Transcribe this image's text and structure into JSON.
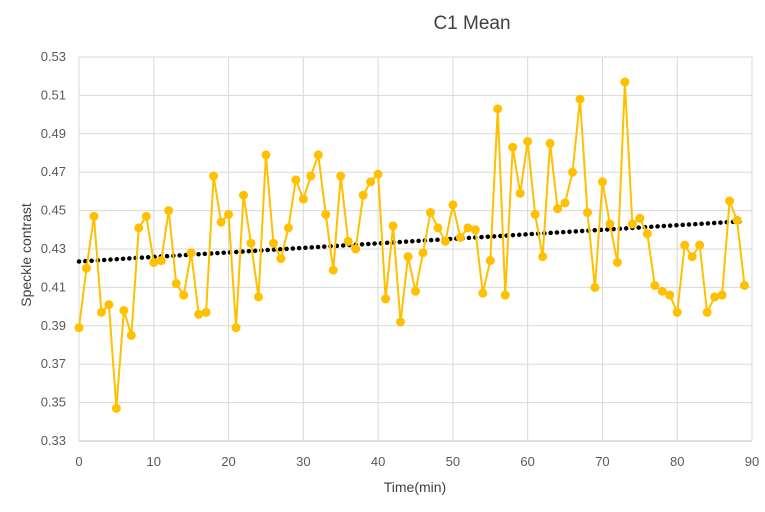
{
  "chart_data": {
    "type": "line",
    "title": "C1 Mean",
    "xlabel": "Time(min)",
    "ylabel": "Speckle contrast",
    "xlim": [
      0,
      90
    ],
    "ylim": [
      0.33,
      0.53
    ],
    "x_ticks": [
      "0",
      "10",
      "20",
      "30",
      "40",
      "50",
      "60",
      "70",
      "80",
      "90"
    ],
    "y_ticks": [
      "0.33",
      "0.35",
      "0.37",
      "0.39",
      "0.41",
      "0.43",
      "0.45",
      "0.47",
      "0.49",
      "0.51",
      "0.53"
    ],
    "grid": true,
    "legend": "none",
    "colors": {
      "series": "#FFC000",
      "trendline": "#000000",
      "grid": "#D9D9D9"
    },
    "series": [
      {
        "x": [
          0,
          1,
          2,
          3,
          4,
          5,
          6,
          7,
          8,
          9,
          10,
          11,
          12,
          13,
          14,
          15,
          16,
          17,
          18,
          19,
          20,
          21,
          22,
          23,
          24,
          25,
          26,
          27,
          28,
          29,
          30,
          31,
          32,
          33,
          34,
          35,
          36,
          37,
          38,
          39,
          40,
          41,
          42,
          43,
          44,
          45,
          46,
          47,
          48,
          49,
          50,
          51,
          52,
          53,
          54,
          55,
          56,
          57,
          58,
          59,
          60,
          61,
          62,
          63,
          64,
          65,
          66,
          67,
          68,
          69,
          70,
          71,
          72,
          73,
          74,
          75,
          76,
          77,
          78,
          79,
          80,
          81,
          82,
          83,
          84,
          85,
          86,
          87,
          88,
          89
        ],
        "values": [
          0.389,
          0.42,
          0.447,
          0.397,
          0.401,
          0.347,
          0.398,
          0.385,
          0.441,
          0.447,
          0.423,
          0.424,
          0.45,
          0.412,
          0.406,
          0.428,
          0.396,
          0.397,
          0.468,
          0.444,
          0.448,
          0.389,
          0.458,
          0.433,
          0.405,
          0.479,
          0.433,
          0.425,
          0.441,
          0.466,
          0.456,
          0.468,
          0.479,
          0.448,
          0.419,
          0.468,
          0.434,
          0.43,
          0.458,
          0.465,
          0.469,
          0.404,
          0.442,
          0.392,
          0.426,
          0.408,
          0.428,
          0.449,
          0.441,
          0.434,
          0.453,
          0.436,
          0.441,
          0.44,
          0.407,
          0.424,
          0.503,
          0.406,
          0.483,
          0.459,
          0.486,
          0.448,
          0.426,
          0.485,
          0.451,
          0.454,
          0.47,
          0.508,
          0.449,
          0.41,
          0.465,
          0.443,
          0.423,
          0.517,
          0.443,
          0.446,
          0.438,
          0.411,
          0.408,
          0.406,
          0.397,
          0.432,
          0.426,
          0.432,
          0.397,
          0.405,
          0.406,
          0.455,
          0.445,
          0.411
        ]
      }
    ],
    "trendline": {
      "type": "linear",
      "style": "dotted",
      "start": [
        0,
        0.4235
      ],
      "end": [
        89,
        0.4445
      ]
    }
  }
}
